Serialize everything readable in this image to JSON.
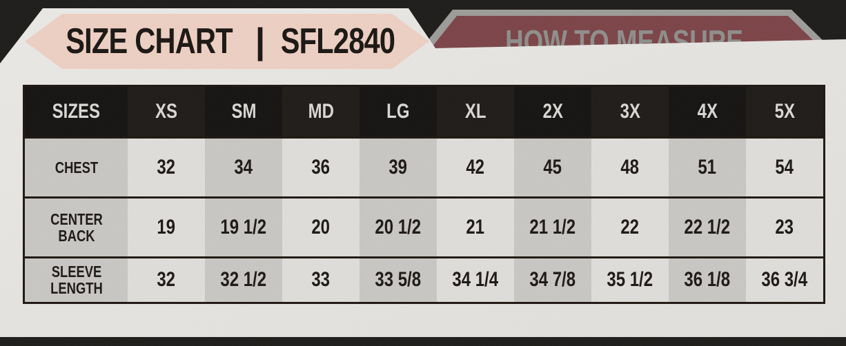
{
  "tabs": {
    "active": {
      "title_left": "SIZE CHART",
      "separator": "|",
      "title_right": "SFL2840"
    },
    "inactive": {
      "label": "HOW TO MEASURE"
    }
  },
  "table": {
    "header": [
      "SIZES",
      "XS",
      "SM",
      "MD",
      "LG",
      "XL",
      "2X",
      "3X",
      "4X",
      "5X"
    ],
    "rows": [
      {
        "label": "CHEST",
        "values": [
          "32",
          "34",
          "36",
          "39",
          "42",
          "45",
          "48",
          "51",
          "54"
        ]
      },
      {
        "label": "CENTER BACK",
        "values": [
          "19",
          "19 1/2",
          "20",
          "20 1/2",
          "21",
          "21 1/2",
          "22",
          "22 1/2",
          "23"
        ]
      },
      {
        "label": "SLEEVE LENGTH",
        "values": [
          "32",
          "32 1/2",
          "33",
          "33 5/8",
          "34 1/4",
          "34 7/8",
          "35 1/2",
          "36 1/8",
          "36 3/4"
        ]
      }
    ]
  },
  "chart_data": {
    "type": "table",
    "title": "SIZE CHART SFL2840",
    "columns": [
      "SIZES",
      "XS",
      "SM",
      "MD",
      "LG",
      "XL",
      "2X",
      "3X",
      "4X",
      "5X"
    ],
    "rows": [
      [
        "CHEST",
        "32",
        "34",
        "36",
        "39",
        "42",
        "45",
        "48",
        "51",
        "54"
      ],
      [
        "CENTER BACK",
        "19",
        "19 1/2",
        "20",
        "20 1/2",
        "21",
        "21 1/2",
        "22",
        "22 1/2",
        "23"
      ],
      [
        "SLEEVE LENGTH",
        "32",
        "32 1/2",
        "33",
        "33 5/8",
        "34 1/4",
        "34 7/8",
        "35 1/2",
        "36 1/8",
        "36 3/4"
      ]
    ]
  },
  "colors": {
    "background_dark": "#1b1a18",
    "panel_white": "#e9e8e5",
    "banner_pink": "#f0d2c5",
    "banner_maroon": "#7c4347",
    "banner_border_gray": "#9d9d9a",
    "table_header_black": "#161310",
    "cell_dark_gray": "#cac9c6",
    "cell_light_gray": "#e1e0dd",
    "text_dark": "#1b1613",
    "text_header": "#dbdad7"
  }
}
